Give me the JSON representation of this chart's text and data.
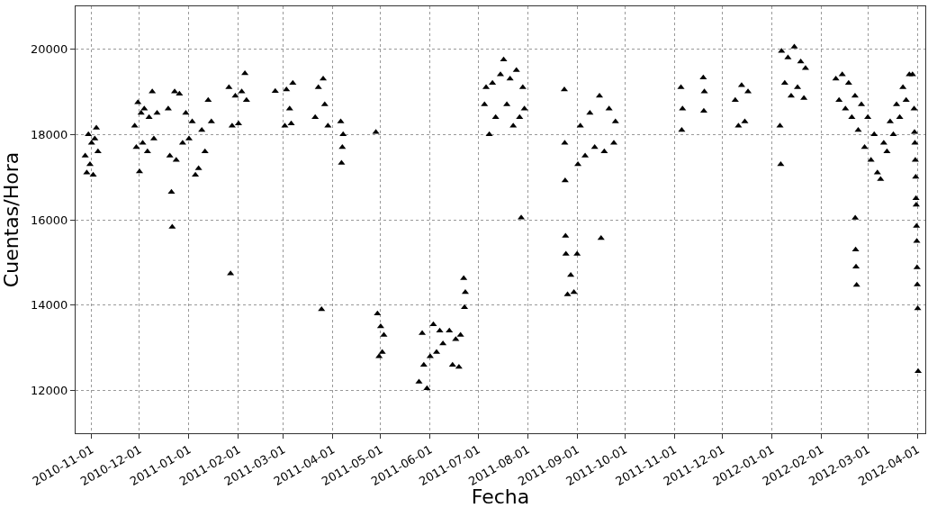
{
  "chart_data": {
    "type": "scatter",
    "xlabel": "Fecha",
    "ylabel": "Cuentas/Hora",
    "xlim": [
      "2010-10-22",
      "2012-04-06"
    ],
    "ylim": [
      11000,
      21000
    ],
    "xticks": [
      "2010-11-01",
      "2010-12-01",
      "2011-01-01",
      "2011-02-01",
      "2011-03-01",
      "2011-04-01",
      "2011-05-01",
      "2011-06-01",
      "2011-07-01",
      "2011-08-01",
      "2011-09-01",
      "2011-10-01",
      "2011-11-01",
      "2011-12-01",
      "2012-01-01",
      "2012-02-01",
      "2012-03-01",
      "2012-04-01"
    ],
    "yticks": [
      12000,
      14000,
      16000,
      18000,
      20000
    ],
    "grid": true,
    "marker": "triangle",
    "series": [
      {
        "color": "#000000",
        "x": [
          "2010-10-28",
          "2010-10-29",
          "2010-10-30",
          "2010-10-31",
          "2010-11-01",
          "2010-11-02",
          "2010-11-03",
          "2010-11-04",
          "2010-11-05",
          "2010-11-28",
          "2010-11-29",
          "2010-11-30",
          "2010-12-01",
          "2010-12-02",
          "2010-12-03",
          "2010-12-04",
          "2010-12-06",
          "2010-12-07",
          "2010-12-09",
          "2010-12-10",
          "2010-12-12",
          "2010-12-19",
          "2010-12-20",
          "2010-12-21",
          "2010-12-21T12:00",
          "2010-12-23",
          "2010-12-24",
          "2010-12-26",
          "2010-12-28",
          "2010-12-30",
          "2011-01-01",
          "2011-01-03",
          "2011-01-05",
          "2011-01-07",
          "2011-01-09",
          "2011-01-11",
          "2011-01-13",
          "2011-01-15",
          "2011-01-26",
          "2011-01-27",
          "2011-01-28",
          "2011-01-30",
          "2011-02-01",
          "2011-02-03",
          "2011-02-05",
          "2011-02-06",
          "2011-02-24",
          "2011-03-02",
          "2011-03-03",
          "2011-03-05",
          "2011-03-06",
          "2011-03-07",
          "2011-03-21",
          "2011-03-23",
          "2011-03-25",
          "2011-03-26",
          "2011-03-27",
          "2011-03-29",
          "2011-04-06",
          "2011-04-06T12:00",
          "2011-04-07",
          "2011-04-07T12:00",
          "2011-04-28",
          "2011-04-29",
          "2011-04-30",
          "2011-05-01",
          "2011-05-02",
          "2011-05-03",
          "2011-05-25",
          "2011-05-27",
          "2011-05-28",
          "2011-05-30",
          "2011-06-01",
          "2011-06-03",
          "2011-06-05",
          "2011-06-07",
          "2011-06-09",
          "2011-06-13",
          "2011-06-15",
          "2011-06-17",
          "2011-06-19",
          "2011-06-20",
          "2011-06-22",
          "2011-06-22T12:00",
          "2011-06-23",
          "2011-07-05",
          "2011-07-06",
          "2011-07-08",
          "2011-07-10",
          "2011-07-12",
          "2011-07-15",
          "2011-07-17",
          "2011-07-19",
          "2011-07-21",
          "2011-07-23",
          "2011-07-25",
          "2011-07-27",
          "2011-07-29",
          "2011-07-30",
          "2011-07-28",
          "2011-08-24",
          "2011-08-24T06:00",
          "2011-08-24T12:00",
          "2011-08-24T18:00",
          "2011-08-25",
          "2011-08-26",
          "2011-08-28",
          "2011-08-30",
          "2011-09-01",
          "2011-09-01T12:00",
          "2011-09-03",
          "2011-09-06",
          "2011-09-09",
          "2011-09-12",
          "2011-09-15",
          "2011-09-18",
          "2011-09-21",
          "2011-09-24",
          "2011-09-25",
          "2011-09-16",
          "2011-11-05",
          "2011-11-05T12:00",
          "2011-11-06",
          "2011-11-19",
          "2011-11-19T08:00",
          "2011-11-19T16:00",
          "2011-12-09",
          "2011-12-11",
          "2011-12-13",
          "2011-12-15",
          "2011-12-17",
          "2012-01-06",
          "2012-01-06T12:00",
          "2012-01-07",
          "2012-01-09",
          "2012-01-11",
          "2012-01-13",
          "2012-01-15",
          "2012-01-17",
          "2012-01-19",
          "2012-01-21",
          "2012-01-22",
          "2012-02-10",
          "2012-02-12",
          "2012-02-14",
          "2012-02-16",
          "2012-02-18",
          "2012-02-20",
          "2012-02-22",
          "2012-02-24",
          "2012-02-26",
          "2012-02-28",
          "2012-03-01",
          "2012-03-03",
          "2012-03-05",
          "2012-03-07",
          "2012-03-09",
          "2012-03-11",
          "2012-03-13",
          "2012-03-15",
          "2012-03-17",
          "2012-03-19",
          "2012-03-21",
          "2012-03-23",
          "2012-03-25",
          "2012-03-27",
          "2012-02-22T03:00",
          "2012-02-22T09:00",
          "2012-02-22T15:00",
          "2012-02-23",
          "2012-03-29",
          "2012-03-30",
          "2012-03-30T06:00",
          "2012-03-30T12:00",
          "2012-03-30T18:00",
          "2012-03-31",
          "2012-03-31T04:00",
          "2012-03-31T08:00",
          "2012-03-31T12:00",
          "2012-03-31T16:00",
          "2012-03-31T20:00",
          "2012-04-01",
          "2012-04-01T06:00",
          "2012-04-01T12:00"
        ],
        "values": [
          17500,
          17100,
          18000,
          17300,
          17800,
          17050,
          17900,
          18150,
          17600,
          18200,
          17700,
          18750,
          17130,
          18500,
          17800,
          18600,
          17600,
          18400,
          19000,
          17900,
          18500,
          18600,
          17500,
          16650,
          15830,
          19000,
          17400,
          18950,
          17800,
          18500,
          17900,
          18300,
          17050,
          17200,
          18100,
          17600,
          18800,
          18300,
          19100,
          14740,
          18200,
          18900,
          18250,
          19000,
          19430,
          18800,
          19010,
          18200,
          19050,
          18600,
          18250,
          19200,
          18400,
          19100,
          13900,
          19300,
          18700,
          18200,
          18300,
          17330,
          17700,
          18000,
          18050,
          13800,
          12800,
          13500,
          12900,
          13300,
          12200,
          13340,
          12600,
          12050,
          12800,
          13550,
          12900,
          13400,
          13100,
          13400,
          12600,
          13200,
          12550,
          13300,
          14630,
          13950,
          14300,
          18700,
          19100,
          18000,
          19200,
          18400,
          19400,
          19750,
          18700,
          19300,
          18200,
          19500,
          18400,
          19100,
          18600,
          16050,
          19050,
          17800,
          16920,
          15620,
          15200,
          14250,
          14700,
          14300,
          15200,
          17300,
          18200,
          17500,
          18500,
          17700,
          18900,
          17600,
          18600,
          17800,
          18300,
          15570,
          19100,
          18100,
          18600,
          19330,
          18550,
          19000,
          18800,
          18200,
          19150,
          18300,
          19000,
          18200,
          17300,
          19950,
          19200,
          19800,
          18900,
          20050,
          19100,
          19700,
          18850,
          19550,
          19300,
          18800,
          19400,
          18600,
          19200,
          18400,
          18900,
          18100,
          18700,
          17700,
          18400,
          17400,
          18000,
          17100,
          16950,
          17800,
          17600,
          18300,
          18000,
          18700,
          18400,
          19100,
          18800,
          19400,
          16040,
          15300,
          14900,
          14470,
          19400,
          18600,
          18050,
          17800,
          17400,
          17000,
          16500,
          16350,
          15850,
          15500,
          14880,
          14480,
          13920,
          12450
        ]
      }
    ]
  }
}
